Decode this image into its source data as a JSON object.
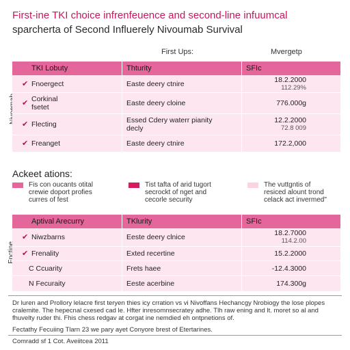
{
  "title": {
    "line1": "First-ine TKI choice infrenfeuence and second-line infuumcal",
    "line2": "sparcherta of Second Influerely Nivoumab Survival"
  },
  "column_heads": {
    "left": "First Ups:",
    "right": "Mvergetp"
  },
  "table1": {
    "side_label": "Nivoemab",
    "headers": [
      "TKI Lobuty",
      "Thturity",
      "SFIc"
    ],
    "rows": [
      {
        "c1": "Fnoergect",
        "c2": "Easte deery ctnire",
        "v1": "18.2.2000",
        "v2": "112.29%"
      },
      {
        "c1": "Corkinal\nfsetet",
        "c2": "Easte deery cloine",
        "v1": "776.000g",
        "v2": ""
      },
      {
        "c1": "Flecting",
        "c2": "Essed Cdery waterr pianity\ndecly",
        "v1": "12.2.2000",
        "v2": "72.8 009"
      },
      {
        "c1": "Freanget",
        "c2": "Easte deery ctnire",
        "v1": "172.2,000",
        "v2": ""
      }
    ]
  },
  "section2": {
    "heading": "Ackeet ations:",
    "legend": [
      {
        "text": "Fis con oucants otital\ncrewie doport profies\ncurres of fest",
        "color": "#e4669a"
      },
      {
        "text": "Tist tafta of arid tugort\nsecrockt of nget and\ncecorle security",
        "color": "#d81b60"
      },
      {
        "text": "The vuttgntis of\nresiced alount trond\ncelack act invermed\"",
        "color": "#fbd3e2"
      }
    ]
  },
  "table2": {
    "side_label": "Fnctine",
    "headers": [
      "Aptival Arecurry",
      "TKlurity",
      "SFIc"
    ],
    "rows": [
      {
        "check": true,
        "c1": "Niwzbarns",
        "c2": "Eeste deery clnice",
        "v1": "18.2.7000",
        "v2": "114.2.00"
      },
      {
        "check": true,
        "c1": "Frenality",
        "c2": "Exted recertine",
        "v1": "15.2.2000",
        "v2": ""
      },
      {
        "check": false,
        "c1": "C Ccuarity",
        "c2": "Frets haee",
        "v1": "-12.4.3000",
        "v2": ""
      },
      {
        "check": false,
        "c1": "N Fecuraity",
        "c2": "Eeste acerbine",
        "v1": "174.300g",
        "v2": ""
      }
    ]
  },
  "footnote": {
    "p1": "Dr luren and Prollory lelacre first teryen thies icy crration vs vi Nivoffans Hechancgy Nrobiogy the lose plopes cralemite. The hepecnal cxesed cad le. Hfter inresomnsecratey adhe. Tlh raw ening and lt. moret so al and fhuvelty ruder thi. Fhis chess redgav at corgat ine nemdied eh ontpnetions of.",
    "p2": "Fectathy Fecuiing Tlarn 23 we pary ayet Conyore brest of Etertarines.",
    "p3": "Comradd sf 1 Cot. Aveiitcea 2011"
  }
}
